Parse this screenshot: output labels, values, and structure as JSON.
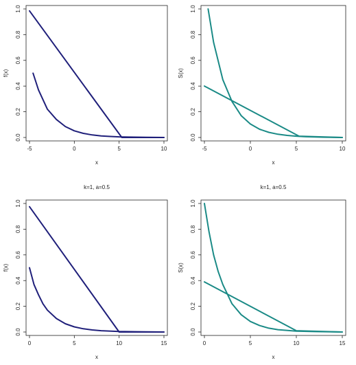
{
  "chart_data": [
    {
      "type": "line",
      "title": "",
      "xlabel": "x",
      "ylabel": "f(x)",
      "xlim": [
        -5,
        10
      ],
      "ylim": [
        0,
        1
      ],
      "xticks": [
        "-5",
        "0",
        "5",
        "10"
      ],
      "yticks": [
        "0.0",
        "0.2",
        "0.4",
        "0.6",
        "0.8",
        "1.0"
      ],
      "color": "#1f1f7a",
      "series": [
        {
          "x": [
            -5,
            5.3,
            10
          ],
          "y": [
            0.985,
            0.0,
            0.0
          ]
        },
        {
          "x": [
            -4.6,
            -4.0,
            -3.0,
            -2.0,
            -1.0,
            0.0,
            1.0,
            2.0,
            3.0,
            4.0,
            5.0,
            6.0,
            8.0,
            10.0
          ],
          "y": [
            0.5,
            0.37,
            0.22,
            0.14,
            0.085,
            0.052,
            0.032,
            0.02,
            0.012,
            0.008,
            0.005,
            0.003,
            0.001,
            0.0
          ]
        }
      ]
    },
    {
      "type": "line",
      "title": "",
      "xlabel": "x",
      "ylabel": "S(x)",
      "xlim": [
        -5,
        10
      ],
      "ylim": [
        0,
        1
      ],
      "xticks": [
        "-5",
        "0",
        "5",
        "10"
      ],
      "yticks": [
        "0.0",
        "0.2",
        "0.4",
        "0.6",
        "0.8",
        "1.0"
      ],
      "color": "#1a8a86",
      "series": [
        {
          "x": [
            -5,
            5.3,
            10
          ],
          "y": [
            0.4,
            0.01,
            0.0
          ]
        },
        {
          "x": [
            -4.6,
            -4.0,
            -3.0,
            -2.0,
            -1.0,
            0.0,
            1.0,
            2.0,
            3.0,
            4.0,
            5.0,
            6.0,
            8.0,
            10.0
          ],
          "y": [
            1.0,
            0.74,
            0.45,
            0.28,
            0.17,
            0.105,
            0.064,
            0.04,
            0.025,
            0.016,
            0.01,
            0.006,
            0.002,
            0.0
          ]
        }
      ]
    },
    {
      "type": "line",
      "title": "k=1, a=0.5",
      "xlabel": "x",
      "ylabel": "f(x)",
      "xlim": [
        0,
        15
      ],
      "ylim": [
        0,
        1
      ],
      "xticks": [
        "0",
        "5",
        "10",
        "15"
      ],
      "yticks": [
        "0.0",
        "0.2",
        "0.4",
        "0.6",
        "0.8",
        "1.0"
      ],
      "color": "#1f1f7a",
      "series": [
        {
          "x": [
            0,
            10,
            15
          ],
          "y": [
            0.975,
            0.0,
            0.0
          ]
        },
        {
          "x": [
            0.0,
            0.5,
            1.0,
            1.5,
            2.0,
            3.0,
            4.0,
            5.0,
            6.0,
            7.0,
            8.0,
            10.0,
            12.0,
            15.0
          ],
          "y": [
            0.5,
            0.37,
            0.29,
            0.22,
            0.17,
            0.105,
            0.064,
            0.04,
            0.025,
            0.016,
            0.01,
            0.004,
            0.002,
            0.0
          ]
        }
      ]
    },
    {
      "type": "line",
      "title": "k=1, a=0.5",
      "xlabel": "x",
      "ylabel": "S(x)",
      "xlim": [
        0,
        15
      ],
      "ylim": [
        0,
        1
      ],
      "xticks": [
        "0",
        "5",
        "10",
        "15"
      ],
      "yticks": [
        "0.0",
        "0.2",
        "0.4",
        "0.6",
        "0.8",
        "1.0"
      ],
      "color": "#1a8a86",
      "series": [
        {
          "x": [
            0,
            10,
            15
          ],
          "y": [
            0.39,
            0.01,
            0.0
          ]
        },
        {
          "x": [
            0.0,
            0.5,
            1.0,
            1.5,
            2.0,
            3.0,
            4.0,
            5.0,
            6.0,
            7.0,
            8.0,
            10.0,
            12.0,
            15.0
          ],
          "y": [
            1.0,
            0.78,
            0.6,
            0.47,
            0.37,
            0.22,
            0.135,
            0.082,
            0.05,
            0.03,
            0.018,
            0.007,
            0.003,
            0.0
          ]
        }
      ]
    }
  ]
}
